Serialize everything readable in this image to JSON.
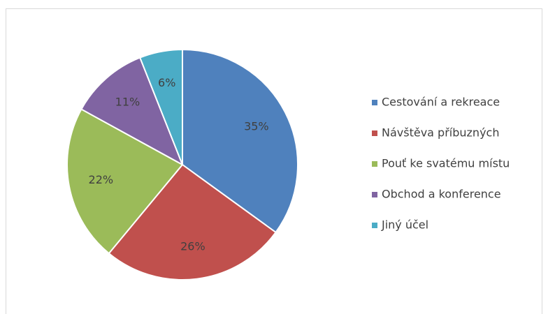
{
  "chart_data": {
    "type": "pie",
    "categories": [
      "Cestování a rekreace",
      "Návštěva příbuzných",
      "Pouť ke svatému místu",
      "Obchod a konference",
      "Jiný účel"
    ],
    "values": [
      35,
      26,
      22,
      11,
      6
    ],
    "value_labels": [
      "35%",
      "26%",
      "22%",
      "11%",
      "6%"
    ],
    "colors": [
      "#4f81bd",
      "#c0504d",
      "#9bbb59",
      "#8064a2",
      "#4bacc6"
    ],
    "legend": "right"
  }
}
